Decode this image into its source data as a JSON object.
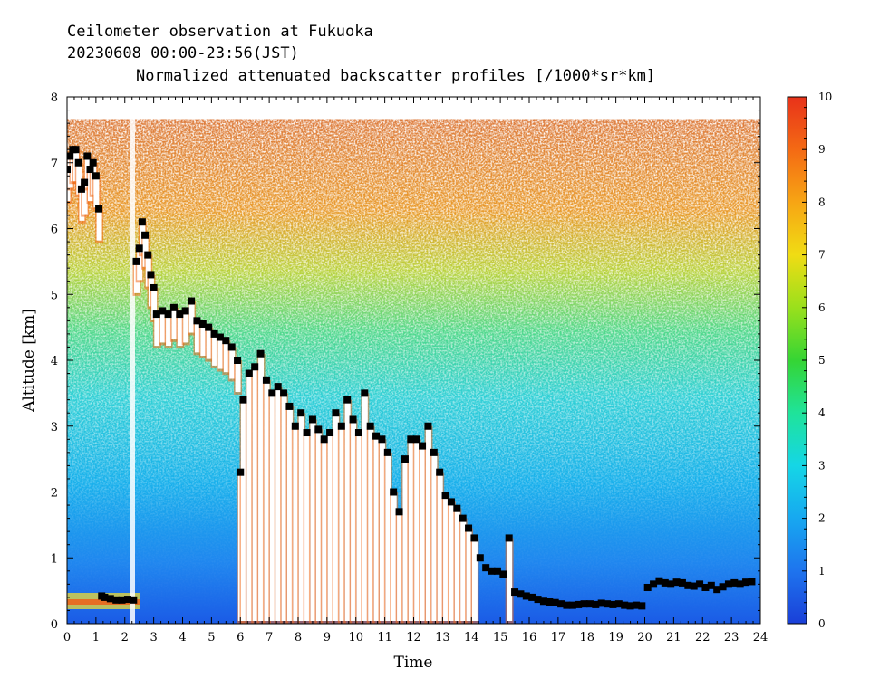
{
  "header": {
    "line1": "Ceilometer observation at Fukuoka",
    "line2": "20230608  00:00-23:56(JST)",
    "line3": "Normalized attenuated backscatter profiles [/1000*sr*km]"
  },
  "chart_data": {
    "type": "heatmap",
    "title": "Normalized attenuated backscatter profiles [/1000*sr*km]",
    "xlabel": "Time",
    "ylabel": "Altitude [km]",
    "xlim": [
      0,
      24
    ],
    "ylim": [
      0,
      8
    ],
    "x_ticks": [
      "0",
      "1",
      "2",
      "3",
      "4",
      "5",
      "6",
      "7",
      "8",
      "9",
      "10",
      "11",
      "12",
      "13",
      "14",
      "15",
      "16",
      "17",
      "18",
      "19",
      "20",
      "21",
      "22",
      "23",
      "24"
    ],
    "y_ticks": [
      "0",
      "1",
      "2",
      "3",
      "4",
      "5",
      "6",
      "7",
      "8"
    ],
    "colorbar": {
      "range": [
        0,
        10
      ],
      "ticks": [
        "0",
        "1",
        "2",
        "3",
        "4",
        "5",
        "6",
        "7",
        "8",
        "9",
        "10"
      ],
      "colors": [
        "#1a3fd8",
        "#1e74ee",
        "#17a8f0",
        "#15d6e6",
        "#1fe39a",
        "#35d534",
        "#9ae01c",
        "#f0dc14",
        "#f7a514",
        "#f46a14",
        "#e8321a"
      ]
    },
    "data_top_km": 7.65,
    "cloud_base_series": {
      "name": "",
      "x": [
        0.0,
        0.1,
        0.2,
        0.3,
        0.4,
        0.5,
        0.6,
        0.7,
        0.8,
        0.9,
        1.0,
        1.1,
        1.2,
        1.3,
        1.5,
        1.7,
        1.9,
        2.1,
        2.3,
        2.4,
        2.5,
        2.6,
        2.7,
        2.8,
        2.9,
        3.0,
        3.1,
        3.3,
        3.5,
        3.7,
        3.9,
        4.1,
        4.3,
        4.5,
        4.7,
        4.9,
        5.1,
        5.3,
        5.5,
        5.7,
        5.9,
        6.0,
        6.1,
        6.3,
        6.5,
        6.7,
        6.9,
        7.1,
        7.3,
        7.5,
        7.7,
        7.9,
        8.1,
        8.3,
        8.5,
        8.7,
        8.9,
        9.1,
        9.3,
        9.5,
        9.7,
        9.9,
        10.1,
        10.3,
        10.5,
        10.7,
        10.9,
        11.1,
        11.3,
        11.5,
        11.7,
        11.9,
        12.1,
        12.3,
        12.5,
        12.7,
        12.9,
        13.1,
        13.3,
        13.5,
        13.7,
        13.9,
        14.1,
        14.3,
        14.5,
        14.7,
        14.9,
        15.1,
        15.3,
        15.5,
        15.7,
        15.9,
        16.1,
        16.3,
        16.5,
        16.7,
        16.9,
        17.1,
        17.3,
        17.5,
        17.7,
        17.9,
        18.1,
        18.3,
        18.5,
        18.7,
        18.9,
        19.1,
        19.3,
        19.5,
        19.7,
        19.9,
        20.1,
        20.3,
        20.5,
        20.7,
        20.9,
        21.1,
        21.3,
        21.5,
        21.7,
        21.9,
        22.1,
        22.3,
        22.5,
        22.7,
        22.9,
        23.1,
        23.3,
        23.5,
        23.7
      ],
      "y": [
        6.9,
        7.1,
        7.2,
        7.2,
        7.0,
        6.6,
        6.7,
        7.1,
        6.9,
        7.0,
        6.8,
        6.3,
        0.42,
        0.4,
        0.38,
        0.36,
        0.36,
        0.37,
        0.36,
        5.5,
        5.7,
        6.1,
        5.9,
        5.6,
        5.3,
        5.1,
        4.7,
        4.75,
        4.7,
        4.8,
        4.7,
        4.75,
        4.9,
        4.6,
        4.55,
        4.5,
        4.4,
        4.35,
        4.3,
        4.2,
        4.0,
        2.3,
        3.4,
        3.8,
        3.9,
        4.1,
        3.7,
        3.5,
        3.6,
        3.5,
        3.3,
        3.0,
        3.2,
        2.9,
        3.1,
        2.95,
        2.8,
        2.9,
        3.2,
        3.0,
        3.4,
        3.1,
        2.9,
        3.5,
        3.0,
        2.85,
        2.8,
        2.6,
        2.0,
        1.7,
        2.5,
        2.8,
        2.8,
        2.7,
        3.0,
        2.6,
        2.3,
        1.95,
        1.85,
        1.75,
        1.6,
        1.45,
        1.3,
        1.0,
        0.85,
        0.8,
        0.8,
        0.75,
        1.3,
        0.48,
        0.45,
        0.42,
        0.4,
        0.37,
        0.34,
        0.33,
        0.32,
        0.3,
        0.28,
        0.28,
        0.29,
        0.3,
        0.3,
        0.29,
        0.31,
        0.3,
        0.29,
        0.3,
        0.28,
        0.27,
        0.28,
        0.27,
        0.55,
        0.6,
        0.65,
        0.62,
        0.6,
        0.63,
        0.62,
        0.58,
        0.57,
        0.6,
        0.55,
        0.58,
        0.52,
        0.56,
        0.6,
        0.62,
        0.6,
        0.63,
        0.64
      ]
    }
  }
}
